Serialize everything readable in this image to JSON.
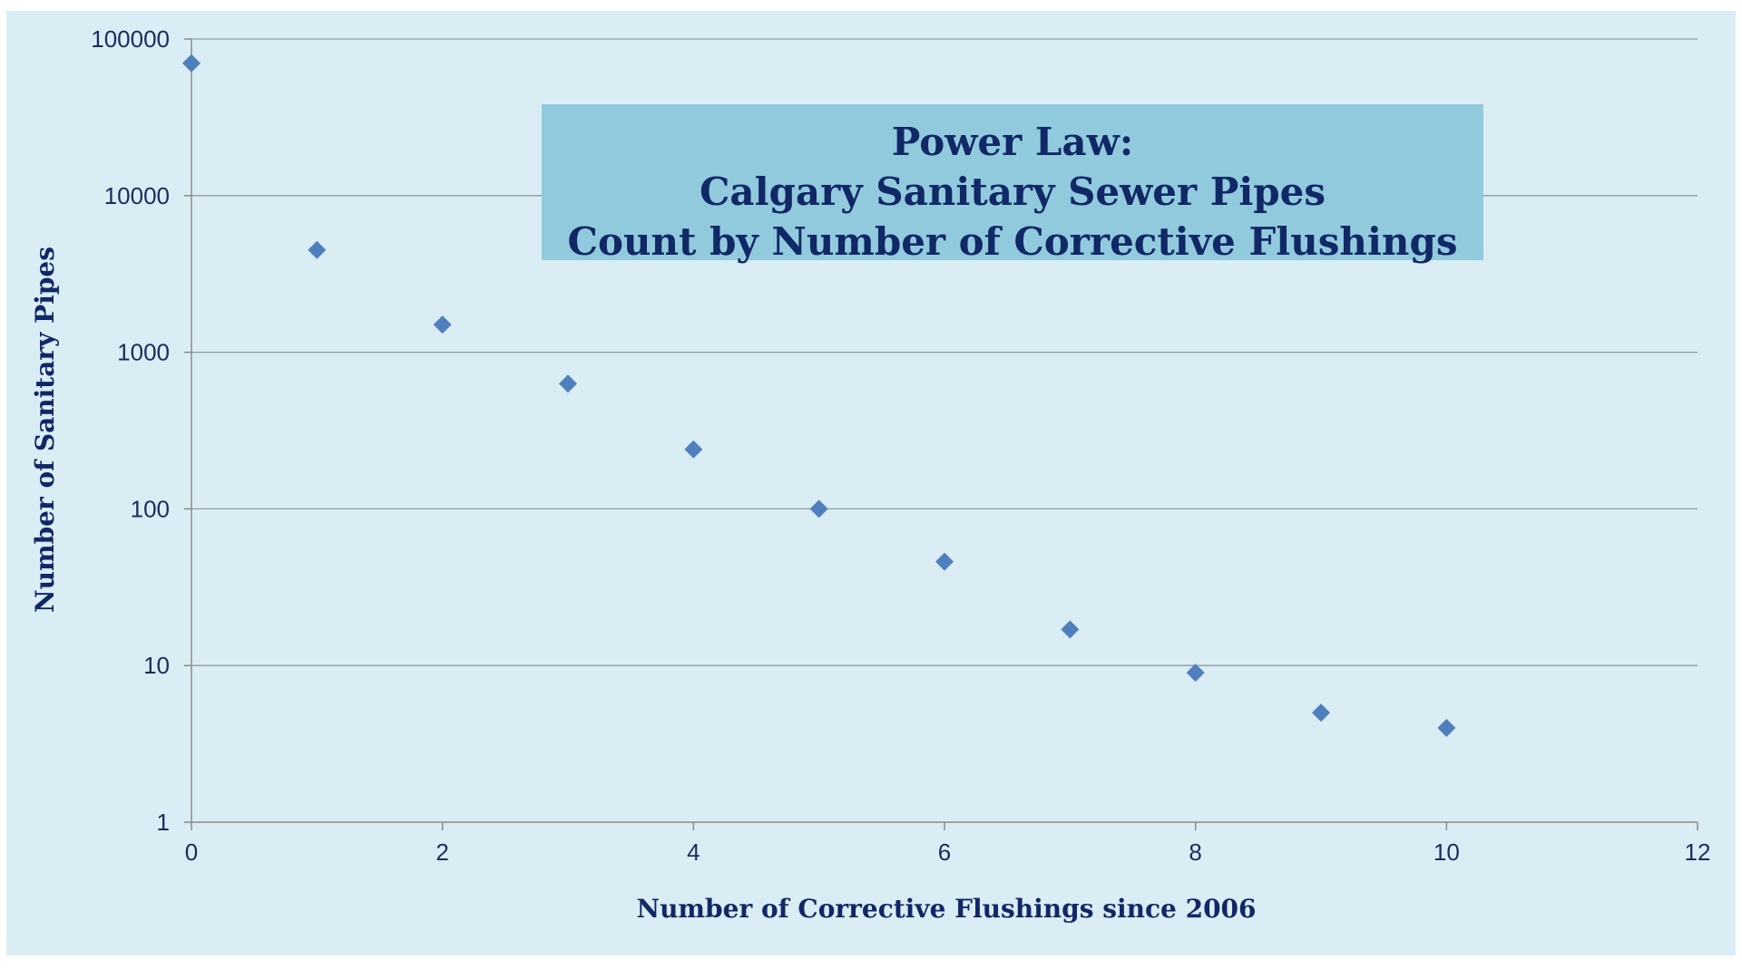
{
  "chart_data": {
    "type": "scatter",
    "title": [
      "Power Law:",
      "Calgary Sanitary Sewer Pipes",
      "Count by Number of Corrective Flushings"
    ],
    "xlabel": "Number of Corrective Flushings since 2006",
    "ylabel": "Number of Sanitary Pipes",
    "xlim": [
      0,
      12
    ],
    "ylim": [
      1,
      100000
    ],
    "yscale": "log",
    "x_ticks": [
      0,
      2,
      4,
      6,
      8,
      10,
      12
    ],
    "y_ticks": [
      1,
      10,
      100,
      1000,
      10000,
      100000
    ],
    "x_tick_labels": [
      "0",
      "2",
      "4",
      "6",
      "8",
      "10",
      "12"
    ],
    "y_tick_labels": [
      "1",
      "10",
      "100",
      "1000",
      "10000",
      "100000"
    ],
    "grid": "horizontal",
    "series": [
      {
        "x": [
          0,
          1,
          2,
          3,
          4,
          5,
          6,
          7,
          8,
          9,
          10
        ],
        "y": [
          70000,
          4500,
          1500,
          630,
          240,
          100,
          46,
          17,
          9,
          5,
          4
        ]
      }
    ],
    "colors": {
      "background": "#dbedf4",
      "title_box": "#92cadd",
      "marker": "#4f7fbd",
      "text": "#102866",
      "grid": "#888888"
    }
  }
}
